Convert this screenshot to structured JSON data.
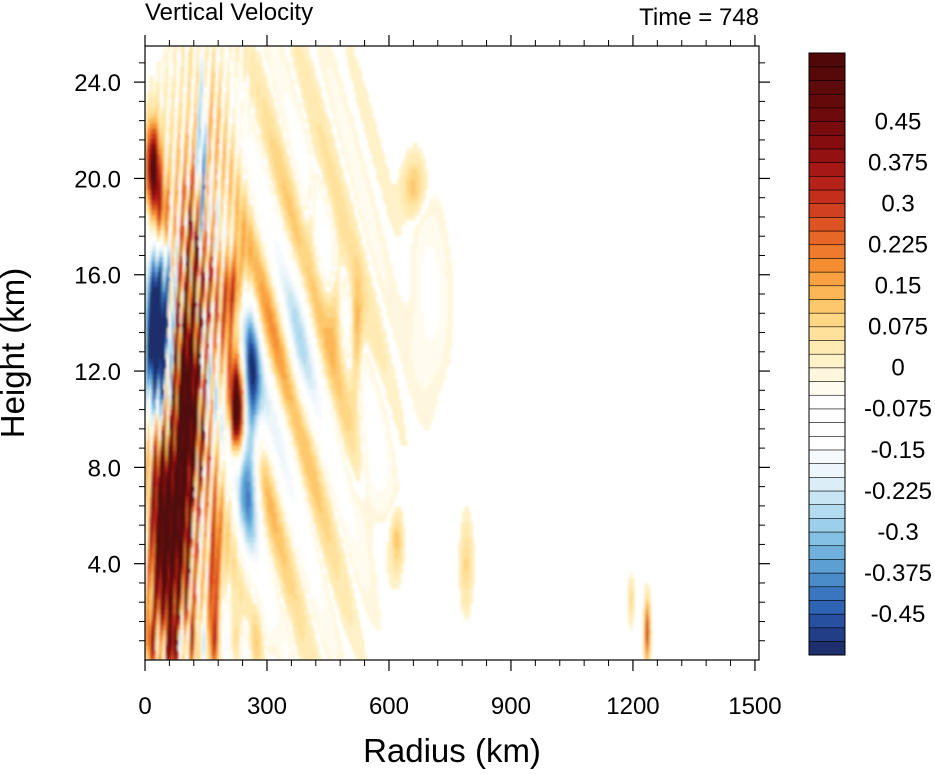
{
  "chart_data": {
    "type": "heatmap",
    "title_left": "Vertical Velocity",
    "title_right": "Time = 748",
    "xlabel": "Radius (km)",
    "ylabel": "Height (km)",
    "xlim": [
      0,
      1510
    ],
    "ylim": [
      0,
      25.5
    ],
    "x_ticks": [
      0,
      300,
      600,
      900,
      1200,
      1500
    ],
    "x_tick_labels": [
      "0",
      "300",
      "600",
      "900",
      "1200",
      "1500"
    ],
    "y_ticks": [
      4,
      8,
      12,
      16,
      20,
      24
    ],
    "y_tick_labels": [
      "4.0",
      "8.0",
      "12.0",
      "16.0",
      "20.0",
      "24.0"
    ],
    "colorbar": {
      "levels_min": -0.525,
      "levels_step": 0.025,
      "n_levels": 44,
      "labels": [
        {
          "value": 0.45,
          "text": "0.45"
        },
        {
          "value": 0.375,
          "text": "0.375"
        },
        {
          "value": 0.3,
          "text": "0.3"
        },
        {
          "value": 0.225,
          "text": "0.225"
        },
        {
          "value": 0.15,
          "text": "0.15"
        },
        {
          "value": 0.075,
          "text": "0.075"
        },
        {
          "value": 0,
          "text": "0"
        },
        {
          "value": -0.075,
          "text": "-0.075"
        },
        {
          "value": -0.15,
          "text": "-0.15"
        },
        {
          "value": -0.225,
          "text": "-0.225"
        },
        {
          "value": -0.3,
          "text": "-0.3"
        },
        {
          "value": -0.375,
          "text": "-0.375"
        },
        {
          "value": -0.45,
          "text": "-0.45"
        }
      ],
      "colors": [
        "#1d2f6c",
        "#213e86",
        "#2750a0",
        "#2e62b2",
        "#3a76bf",
        "#4a8bc9",
        "#5b9fd3",
        "#6fb1dc",
        "#84c1e4",
        "#9bcfea",
        "#b2dbef",
        "#c7e5f3",
        "#dbeef7",
        "#ecf6fb",
        "#f6fafd",
        "#ffffff",
        "#ffffff",
        "#ffffff",
        "#ffffff",
        "#fffbee",
        "#fff7dd",
        "#fff1c8",
        "#ffeab2",
        "#ffe19b",
        "#fed684",
        "#fdc86c",
        "#fcb655",
        "#faa241",
        "#f58d33",
        "#ef7a2b",
        "#e76726",
        "#dd5323",
        "#d1401f",
        "#c42f1c",
        "#b52219",
        "#a51816",
        "#941112",
        "#850d10",
        "#780b0e",
        "#6e0a0c",
        "#650a0b",
        "#5e090a",
        "#570909",
        "#500808"
      ],
      "zero_color": "#ffffff"
    },
    "features": [
      {
        "r": 100,
        "z": 9.5,
        "w": 0.9,
        "dr": 38,
        "dz": 7.5,
        "desc": "main eyewall updraft"
      },
      {
        "r": 30,
        "z": 13.5,
        "w": -0.75,
        "dr": 28,
        "dz": 4.5
      },
      {
        "r": 35,
        "z": 6.0,
        "w": 0.6,
        "dr": 25,
        "dz": 4.5
      },
      {
        "r": 225,
        "z": 10.3,
        "w": 0.6,
        "dr": 18,
        "dz": 1.5
      },
      {
        "r": 260,
        "z": 11.0,
        "w": -0.4,
        "dr": 20,
        "dz": 2.5
      },
      {
        "r": 20,
        "z": 20.3,
        "w": 0.55,
        "dr": 15,
        "dz": 1.8
      },
      {
        "r": 520,
        "z": 13.3,
        "w": 0.18,
        "dr": 15,
        "dz": 2.0
      },
      {
        "r": 660,
        "z": 19.7,
        "w": 0.12,
        "dr": 25,
        "dz": 1.0
      },
      {
        "r": 1235,
        "z": 1.2,
        "w": 0.35,
        "dr": 5,
        "dz": 0.9
      }
    ]
  }
}
